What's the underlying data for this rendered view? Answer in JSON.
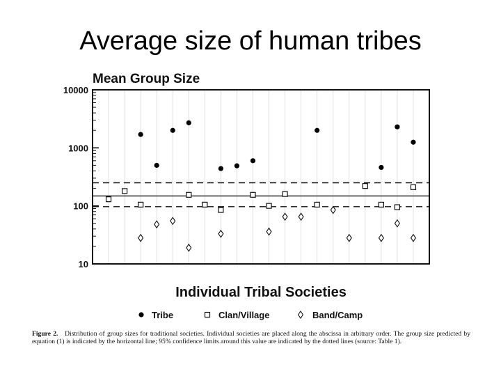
{
  "slide": {
    "title": "Average size of human tribes"
  },
  "figure_caption": {
    "label": "Figure 2.",
    "text": "Distribution of group sizes for traditional societies. Individual societies are placed along the abscissa in arbitrary order. The group size predicted by equation (1) is indicated by the horizontal line; 95% confidence limits around this value are indicated by the dotted lines (source: Table 1)."
  },
  "chart_data": {
    "type": "scatter",
    "title": "Mean Group Size",
    "xlabel": "Individual Tribal Societies",
    "ylabel": "",
    "y_scale": "log",
    "ylim": [
      10,
      10000
    ],
    "y_ticks": [
      "10",
      "100",
      "1000",
      "10000"
    ],
    "xlim": [
      0,
      21
    ],
    "legend": {
      "position": "bottom",
      "entries": [
        "Tribe",
        "Clan/Village",
        "Band/Camp"
      ]
    },
    "reference_lines": [
      {
        "style": "solid",
        "value": 148
      },
      {
        "style": "dashed",
        "value": 250
      },
      {
        "style": "dashed",
        "value": 97
      }
    ],
    "series": [
      {
        "name": "Tribe",
        "marker": "filled-circle",
        "x": [
          3,
          4,
          5,
          6,
          8,
          9,
          10,
          14,
          18,
          19,
          20
        ],
        "values": [
          1700,
          500,
          2000,
          2700,
          440,
          490,
          600,
          2000,
          460,
          2300,
          1250
        ]
      },
      {
        "name": "Clan/Village",
        "marker": "open-square",
        "x": [
          1,
          2,
          3,
          6,
          7,
          8,
          10,
          11,
          12,
          14,
          17,
          18,
          19,
          20
        ],
        "values": [
          130,
          180,
          105,
          155,
          105,
          85,
          155,
          100,
          160,
          105,
          220,
          105,
          95,
          210
        ]
      },
      {
        "name": "Band/Camp",
        "marker": "open-diamond",
        "x": [
          3,
          4,
          5,
          6,
          8,
          11,
          12,
          13,
          15,
          16,
          18,
          19,
          20
        ],
        "values": [
          28,
          48,
          55,
          19,
          33,
          36,
          65,
          65,
          85,
          28,
          28,
          50,
          28
        ]
      }
    ]
  }
}
